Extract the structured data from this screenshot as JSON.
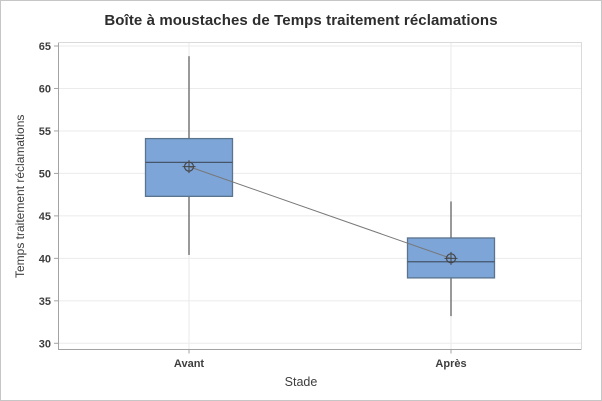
{
  "chart_data": {
    "type": "boxplot",
    "title": "Boîte à moustaches de Temps traitement réclamations",
    "xlabel": "Stade",
    "ylabel": "Temps traitement réclamations",
    "categories": [
      "Avant",
      "Après"
    ],
    "yticks": [
      65,
      60,
      55,
      50,
      45,
      40,
      35,
      30
    ],
    "ylim": [
      29.3,
      65.5
    ],
    "grid": "horizontal gridlines at each y tick, faint vertical line at each category",
    "legend": "none",
    "mean_symbol": "circle-plus",
    "mean_connector": true,
    "series": [
      {
        "name": "Avant",
        "whisker_low": 40.4,
        "q1": 47.3,
        "median": 51.3,
        "q3": 54.1,
        "whisker_high": 63.8,
        "mean": 50.8
      },
      {
        "name": "Après",
        "whisker_low": 33.2,
        "q1": 37.7,
        "median": 39.6,
        "q3": 42.4,
        "whisker_high": 46.7,
        "mean": 40.0
      }
    ],
    "colors": {
      "box_fill": "#7DA5D8",
      "box_border": "#5A748E",
      "median_line": "#46566A",
      "whisker": "#666666",
      "mean_symbol": "#444444",
      "connector": "#777777",
      "gridline": "#EBEBEB",
      "category_line": "#F1F1F1",
      "axis_line": "#A3A3A3",
      "axis_line_light": "#DADADA",
      "tick_text": "#3E3E3E"
    }
  }
}
